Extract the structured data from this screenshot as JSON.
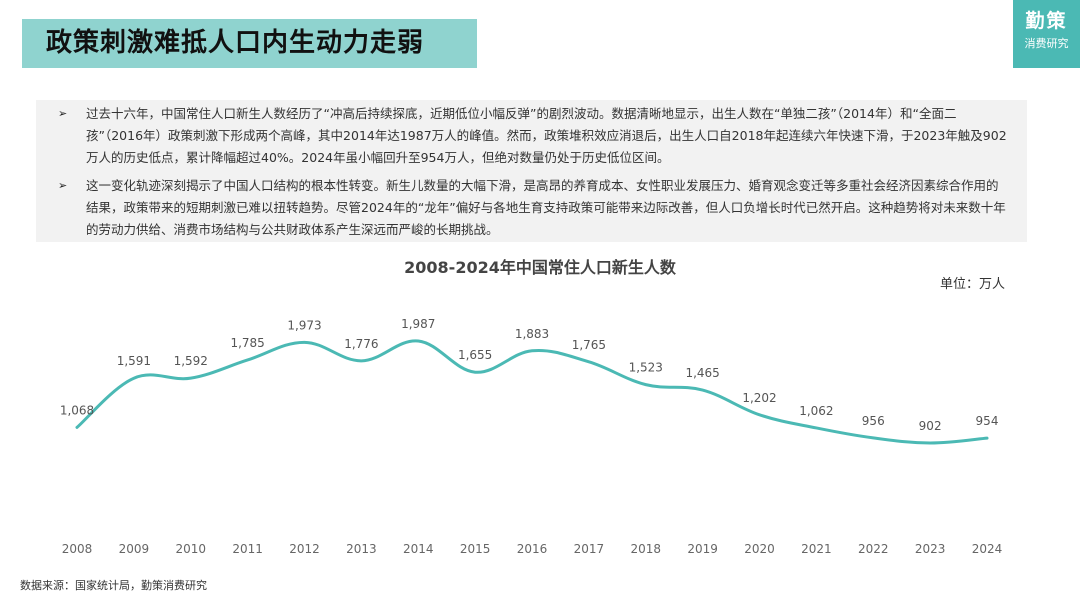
{
  "header": {
    "title": "政策刺激难抵人口内生动力走弱",
    "logo_main": "勤策",
    "logo_sub": "消费研究"
  },
  "bullets": [
    {
      "mark": "➢",
      "text": "过去十六年，中国常住人口新生人数经历了“冲高后持续探底，近期低位小幅反弹”的剧烈波动。数据清晰地显示，出生人数在“单独二孩”（2014年）和“全面二孩”（2016年）政策刺激下形成两个高峰，其中2014年达1987万人的峰值。然而，政策堆积效应消退后，出生人口自2018年起连续六年快速下滑，于2023年触及902万人的历史低点，累计降幅超过40%。2024年虽小幅回升至954万人，但绝对数量仍处于历史低位区间。"
    },
    {
      "mark": "➢",
      "text": "这一变化轨迹深刻揭示了中国人口结构的根本性转变。新生儿数量的大幅下滑，是高昂的养育成本、女性职业发展压力、婚育观念变迁等多重社会经济因素综合作用的结果，政策带来的短期刺激已难以扭转趋势。尽管2024年的“龙年”偏好与各地生育支持政策可能带来边际改善，但人口负增长时代已然开启。这种趋势将对未来数十年的劳动力供给、消费市场结构与公共财政体系产生深远而严峻的长期挑战。"
    }
  ],
  "unit_label": "单位：万人",
  "source": "数据来源：国家统计局，勤策消费研究",
  "chart_data": {
    "type": "line",
    "title": "2008-2024年中国常住人口新生人数",
    "xlabel": "",
    "ylabel": "",
    "unit": "万人",
    "categories": [
      "2008",
      "2009",
      "2010",
      "2011",
      "2012",
      "2013",
      "2014",
      "2015",
      "2016",
      "2017",
      "2018",
      "2019",
      "2020",
      "2021",
      "2022",
      "2023",
      "2024"
    ],
    "values": [
      1068,
      1591,
      1592,
      1785,
      1973,
      1776,
      1987,
      1655,
      1883,
      1765,
      1523,
      1465,
      1202,
      1062,
      956,
      902,
      954
    ],
    "labels": [
      "1,068",
      "1,591",
      "1,592",
      "1,785",
      "1,973",
      "1,776",
      "1,987",
      "1,655",
      "1,883",
      "1,765",
      "1,523",
      "1,465",
      "1,202",
      "1,062",
      "956",
      "902",
      "954"
    ],
    "color": "#4bb9b4",
    "grid": false,
    "legend": "none"
  }
}
